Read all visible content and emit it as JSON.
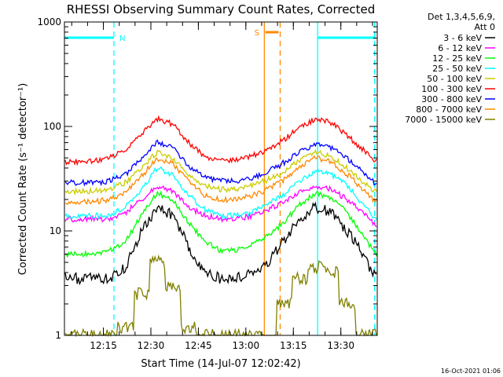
{
  "chart_data": {
    "type": "line",
    "title": "RHESSI Observing Summary Count Rates, Corrected",
    "xlabel": "Start Time (14-Jul-07 12:02:42)",
    "ylabel": "Corrected Count Rate (s⁻¹ detector⁻¹)",
    "y_scale": "log",
    "ylim": [
      1,
      1000
    ],
    "xlim": [
      "12:02:42",
      "13:41:30"
    ],
    "x_ticks": [
      "12:15",
      "12:30",
      "12:45",
      "13:00",
      "13:15",
      "13:30"
    ],
    "y_ticks": [
      "1",
      "10",
      "100",
      "1000"
    ],
    "grid": false,
    "legend": {
      "position": "top-right",
      "header": [
        "Det 1,3,4,5,6,9,",
        "Att 0"
      ]
    },
    "x": [
      "12:07",
      "12:12",
      "12:17",
      "12:22",
      "12:27",
      "12:32",
      "12:37",
      "12:42",
      "12:47",
      "12:52",
      "12:57",
      "13:02",
      "13:07",
      "13:12",
      "13:17",
      "13:22",
      "13:27",
      "13:32",
      "13:37",
      "13:41"
    ],
    "series": [
      {
        "name": "3 - 6 keV",
        "color": "#000000",
        "values": [
          3.5,
          3.5,
          3.5,
          4.5,
          10,
          17,
          14,
          7,
          4,
          3.5,
          3.5,
          4,
          5,
          8,
          13,
          17,
          15,
          10,
          6,
          3.5
        ]
      },
      {
        "name": "6 - 12 keV",
        "color": "#ff00ff",
        "values": [
          13,
          13,
          13,
          15,
          20,
          27,
          24,
          17,
          14,
          13,
          13,
          14,
          16,
          19,
          24,
          27,
          25,
          20,
          15,
          11
        ]
      },
      {
        "name": "12 - 25 keV",
        "color": "#00ff00",
        "values": [
          6,
          6,
          6.5,
          8,
          14,
          23,
          20,
          12,
          8,
          6.5,
          6.5,
          7.5,
          9,
          12,
          18,
          23,
          21,
          15,
          9,
          6
        ]
      },
      {
        "name": "25 - 50 keV",
        "color": "#00ffff",
        "values": [
          14,
          14,
          14,
          17,
          25,
          40,
          34,
          22,
          16,
          14,
          14,
          15,
          18,
          22,
          30,
          38,
          35,
          27,
          18,
          13
        ]
      },
      {
        "name": "50 - 100 keV",
        "color": "#cccc00",
        "values": [
          24,
          24,
          25,
          29,
          40,
          57,
          50,
          35,
          27,
          25,
          25,
          27,
          31,
          37,
          48,
          57,
          52,
          40,
          29,
          24
        ]
      },
      {
        "name": "100 - 300 keV",
        "color": "#ff0000",
        "values": [
          46,
          47,
          50,
          60,
          85,
          118,
          105,
          70,
          52,
          47,
          48,
          52,
          60,
          74,
          98,
          118,
          108,
          82,
          60,
          46
        ]
      },
      {
        "name": "300 - 800 keV",
        "color": "#0000ff",
        "values": [
          29,
          29,
          30,
          35,
          48,
          70,
          62,
          42,
          33,
          30,
          30,
          32,
          37,
          45,
          58,
          68,
          63,
          49,
          37,
          28
        ]
      },
      {
        "name": "800 - 7000 keV",
        "color": "#ff8800",
        "values": [
          19,
          19,
          20,
          23,
          33,
          50,
          44,
          30,
          22,
          20,
          20,
          22,
          25,
          31,
          41,
          50,
          46,
          35,
          25,
          19
        ]
      },
      {
        "name": "7000 - 15000 keV",
        "color": "#808000",
        "values": [
          1,
          1,
          1,
          1.2,
          2.5,
          5,
          3,
          1.2,
          1,
          1,
          1,
          1,
          1,
          2,
          3.5,
          4.5,
          4,
          2,
          1,
          1
        ]
      }
    ],
    "annotations": [
      {
        "label": "N",
        "time_range": [
          "12:02:42",
          "12:18:20"
        ],
        "color": "#00ffff"
      },
      {
        "label": "S",
        "time_range": [
          "13:06:10",
          "13:10:20"
        ],
        "color": "#ff8800"
      },
      {
        "label": "",
        "time_range": [
          "13:22:40",
          "13:41:00"
        ],
        "color": "#00ffff"
      }
    ],
    "vertical_lines": [
      {
        "time": "12:18:20",
        "color": "#00ffff",
        "style": "dashed"
      },
      {
        "time": "13:05:50",
        "color": "#ff8800",
        "style": "solid"
      },
      {
        "time": "13:10:50",
        "color": "#ff8800",
        "style": "dashed"
      },
      {
        "time": "13:22:40",
        "color": "#00ffff",
        "style": "solid"
      },
      {
        "time": "13:40:40",
        "color": "#00ffff",
        "style": "dashed"
      }
    ]
  },
  "footer_timestamp": "16-Oct-2021 01:06"
}
